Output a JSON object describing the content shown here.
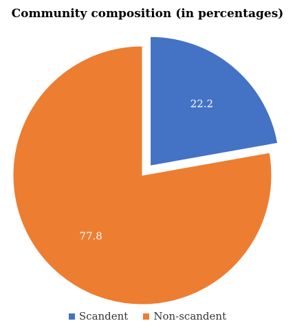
{
  "chart_data": {
    "type": "pie",
    "title": "Community composition (in percentages)",
    "categories": [
      "Scandent",
      "Non-scandent"
    ],
    "values": [
      22.2,
      77.8
    ],
    "colors": [
      "#4472C4",
      "#ED7D31"
    ],
    "data_labels": [
      "22.2",
      "77.8"
    ],
    "exploded": [
      "Scandent"
    ],
    "legend_position": "bottom"
  }
}
